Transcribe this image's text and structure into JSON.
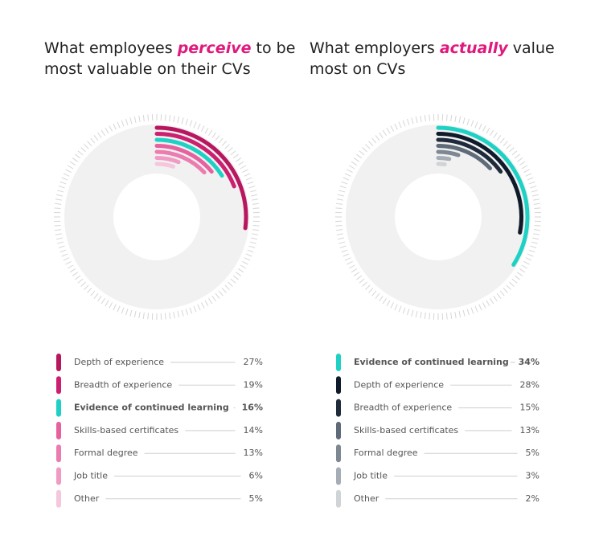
{
  "chart_data": [
    {
      "type": "radial_bar",
      "title": [
        [
          "What employees ",
          "perceive",
          " to be"
        ],
        [
          "most valuable on their CVs"
        ]
      ],
      "categories": [
        "Depth of experience",
        "Breadth of experience",
        "Evidence of continued learning",
        "Skills-based certificates",
        "Formal degree",
        "Job title",
        "Other"
      ],
      "values": [
        27,
        19,
        16,
        14,
        13,
        6,
        5
      ],
      "value_labels": [
        "27%",
        "19%",
        "16%",
        "14%",
        "13%",
        "6%",
        "5%"
      ],
      "colors": [
        "#b8165e",
        "#cc1f6f",
        "#1fd1c4",
        "#e8619f",
        "#ec7cb0",
        "#f19ac3",
        "#f6c6dc"
      ],
      "highlight": 2
    },
    {
      "type": "radial_bar",
      "title": [
        [
          "What employers ",
          "actually",
          " value"
        ],
        [
          "most on CVs"
        ]
      ],
      "categories": [
        "Evidence of continued learning",
        "Depth of experience",
        "Breadth of experience",
        "Skills-based certificates",
        "Formal degree",
        "Job title",
        "Other"
      ],
      "values": [
        34,
        28,
        15,
        13,
        5,
        3,
        2
      ],
      "value_labels": [
        "34%",
        "28%",
        "15%",
        "13%",
        "5%",
        "3%",
        "2%"
      ],
      "colors": [
        "#1fd1c4",
        "#0f1b2a",
        "#1f2b3b",
        "#5f6b78",
        "#7e8892",
        "#a6adb4",
        "#d1d4d7"
      ],
      "highlight": 0
    }
  ]
}
